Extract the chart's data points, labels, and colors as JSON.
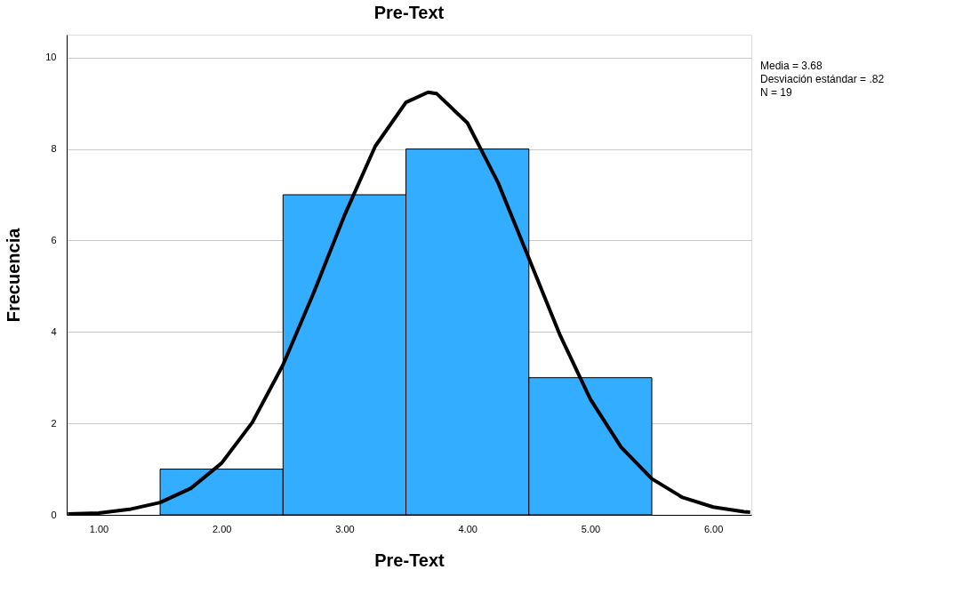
{
  "chart_data": {
    "type": "histogram",
    "title": "Pre-Text",
    "xlabel": "Pre-Text",
    "ylabel": "Frecuencia",
    "bins": [
      1.5,
      2.5,
      3.5,
      4.5,
      5.5
    ],
    "values": [
      1,
      7,
      8,
      3
    ],
    "color": "#33adff",
    "series": [
      {
        "type": "line",
        "color": "#000000",
        "x": [
          0.75,
          1.0,
          1.25,
          1.5,
          1.75,
          2.0,
          2.25,
          2.5,
          2.75,
          3.0,
          3.25,
          3.5,
          3.68,
          3.75,
          4.0,
          4.25,
          4.5,
          4.75,
          5.0,
          5.25,
          5.5,
          5.75,
          6.0,
          6.25,
          6.3
        ],
        "values": [
          0.02,
          0.04,
          0.12,
          0.27,
          0.58,
          1.13,
          2.02,
          3.28,
          4.86,
          6.55,
          8.06,
          9.02,
          9.24,
          9.21,
          8.57,
          7.26,
          5.61,
          3.95,
          2.53,
          1.48,
          0.79,
          0.38,
          0.17,
          0.07,
          0.06
        ]
      }
    ],
    "xlim": [
      0.74,
      6.31
    ],
    "xticks": [
      {
        "value": 1,
        "label": "1.00"
      },
      {
        "value": 2,
        "label": "2.00"
      },
      {
        "value": 3,
        "label": "3.00"
      },
      {
        "value": 4,
        "label": "4.00"
      },
      {
        "value": 5,
        "label": "5.00"
      },
      {
        "value": 6,
        "label": "6.00"
      }
    ],
    "ylim": [
      0,
      10.5
    ],
    "yticks": [
      0,
      2,
      4,
      6,
      8,
      10
    ],
    "grid": "y",
    "annotations": [
      "Media =  3.68",
      "Desviación estándar =    .82",
      "N = 19"
    ]
  }
}
